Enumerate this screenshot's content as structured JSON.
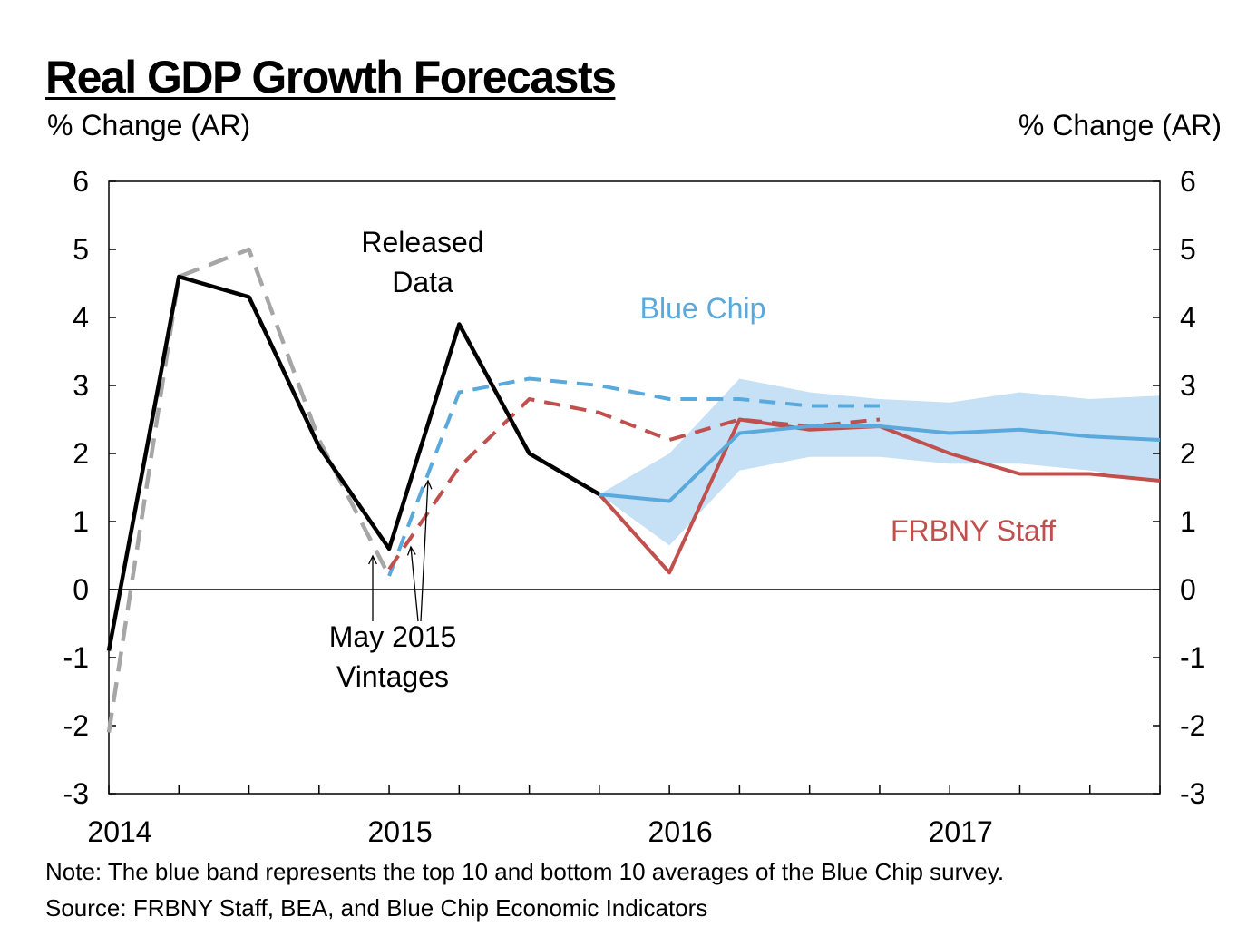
{
  "title": "Real GDP Growth Forecasts",
  "left_axis_unit": "% Change (AR)",
  "right_axis_unit": "% Change (AR)",
  "note": "Note: The blue band represents the top 10 and bottom 10 averages of the Blue Chip survey.",
  "source": "Source: FRBNY Staff, BEA, and Blue Chip Economic Indicators",
  "colors": {
    "released": "#000000",
    "vintage_released": "#a6a6a6",
    "blue_chip": "#5aa9dc",
    "blue_band": "#c6e0f5",
    "frbny": "#c0504d"
  },
  "chart_data": {
    "type": "line",
    "x_unit": "quarter (year + fraction)",
    "xlim": [
      2014.0,
      2017.75
    ],
    "ylim": [
      -3,
      6
    ],
    "yticks": [
      -3,
      -2,
      -1,
      0,
      1,
      2,
      3,
      4,
      5,
      6
    ],
    "xtick_labels": [
      "2014",
      "2015",
      "2016",
      "2017"
    ],
    "xtick_values": [
      2014,
      2015,
      2016,
      2017
    ],
    "grid": false,
    "zero_line": true,
    "series": [
      {
        "key": "released",
        "style": "solid",
        "x": [
          2014.0,
          2014.25,
          2014.5,
          2014.75,
          2015.0,
          2015.25,
          2015.5,
          2015.75
        ],
        "y": [
          -0.9,
          4.6,
          4.3,
          2.1,
          0.6,
          3.9,
          2.0,
          1.4
        ]
      },
      {
        "key": "vintage_released",
        "style": "dashed",
        "x": [
          2014.0,
          2014.25,
          2014.5,
          2014.75,
          2015.0
        ],
        "y": [
          -2.1,
          4.6,
          5.0,
          2.2,
          0.2
        ]
      },
      {
        "key": "blue_chip_vintage",
        "style": "dashed",
        "x": [
          2015.0,
          2015.25,
          2015.5,
          2015.75,
          2016.0,
          2016.25,
          2016.5,
          2016.75
        ],
        "y": [
          0.2,
          2.9,
          3.1,
          3.0,
          2.8,
          2.8,
          2.7,
          2.7
        ]
      },
      {
        "key": "frbny_vintage",
        "style": "dashed",
        "x": [
          2015.0,
          2015.25,
          2015.5,
          2015.75,
          2016.0,
          2016.25,
          2016.5,
          2016.75
        ],
        "y": [
          0.3,
          1.8,
          2.8,
          2.6,
          2.2,
          2.5,
          2.4,
          2.5
        ]
      },
      {
        "key": "blue_chip",
        "style": "solid",
        "x": [
          2015.75,
          2016.0,
          2016.25,
          2016.5,
          2016.75,
          2017.0,
          2017.25,
          2017.5,
          2017.75
        ],
        "y": [
          1.4,
          1.3,
          2.3,
          2.4,
          2.4,
          2.3,
          2.35,
          2.25,
          2.2
        ]
      },
      {
        "key": "frbny",
        "style": "solid",
        "x": [
          2015.75,
          2016.0,
          2016.25,
          2016.5,
          2016.75,
          2017.0,
          2017.25,
          2017.5,
          2017.75
        ],
        "y": [
          1.4,
          0.25,
          2.5,
          2.35,
          2.4,
          2.0,
          1.7,
          1.7,
          1.6
        ]
      }
    ],
    "band": {
      "key": "blue_band",
      "x": [
        2015.75,
        2016.0,
        2016.25,
        2016.5,
        2016.75,
        2017.0,
        2017.25,
        2017.5,
        2017.75
      ],
      "upper": [
        1.4,
        2.0,
        3.1,
        2.9,
        2.8,
        2.75,
        2.9,
        2.8,
        2.85
      ],
      "lower": [
        1.4,
        0.65,
        1.75,
        1.95,
        1.95,
        1.85,
        1.85,
        1.75,
        1.6
      ]
    },
    "annotations": {
      "released_line1": "Released",
      "released_line2": "Data",
      "blue_chip": "Blue Chip",
      "frbny": "FRBNY Staff",
      "vintage_line1": "May 2015",
      "vintage_line2": "Vintages"
    }
  }
}
